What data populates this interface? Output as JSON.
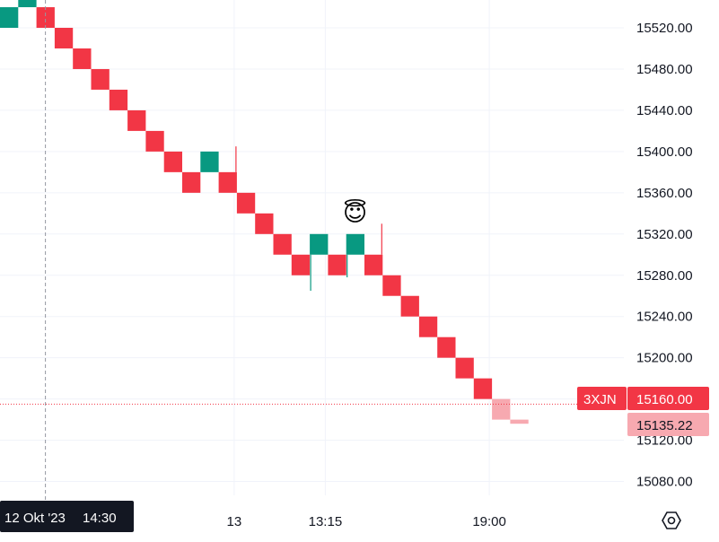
{
  "chart_data": {
    "type": "renko",
    "symbol": "3XJN",
    "brick_size": 20,
    "y_ticks": [
      "15520.00",
      "15480.00",
      "15440.00",
      "15400.00",
      "15360.00",
      "15320.00",
      "15280.00",
      "15240.00",
      "15200.00",
      "15120.00",
      "15080.00"
    ],
    "y_tick_values": [
      15520,
      15480,
      15440,
      15400,
      15360,
      15320,
      15280,
      15240,
      15200,
      15120,
      15080
    ],
    "x_ticks": [
      {
        "label": "13",
        "value": 13
      },
      {
        "label": "13:15",
        "value": 18
      },
      {
        "label": "19:00",
        "value": 27
      }
    ],
    "crosshair": {
      "date_label": "12 Okt '23",
      "time_label": "14:30",
      "index": 2
    },
    "last_price": {
      "symbol": "3XJN",
      "value": "15160.00"
    },
    "live_price": {
      "value": "15135.22"
    },
    "last_price_level": 15155,
    "emoji": "😇",
    "colors": {
      "up": "#089981",
      "down": "#f23645",
      "projected": "#f7a9b0",
      "badge": "#f23645",
      "badge_light": "#f7a9b0"
    },
    "bricks": [
      {
        "i": 0,
        "open": 15520,
        "close": 15540,
        "dir": "up"
      },
      {
        "i": 1,
        "open": 15540,
        "close": 15560,
        "dir": "up"
      },
      {
        "i": 2,
        "open": 15540,
        "close": 15520,
        "dir": "down"
      },
      {
        "i": 3,
        "open": 15520,
        "close": 15500,
        "dir": "down"
      },
      {
        "i": 4,
        "open": 15500,
        "close": 15480,
        "dir": "down"
      },
      {
        "i": 5,
        "open": 15480,
        "close": 15460,
        "dir": "down"
      },
      {
        "i": 6,
        "open": 15460,
        "close": 15440,
        "dir": "down"
      },
      {
        "i": 7,
        "open": 15440,
        "close": 15420,
        "dir": "down"
      },
      {
        "i": 8,
        "open": 15420,
        "close": 15400,
        "dir": "down"
      },
      {
        "i": 9,
        "open": 15400,
        "close": 15380,
        "dir": "down"
      },
      {
        "i": 10,
        "open": 15380,
        "close": 15360,
        "dir": "down"
      },
      {
        "i": 11,
        "open": 15380,
        "close": 15400,
        "dir": "up"
      },
      {
        "i": 12,
        "open": 15380,
        "close": 15360,
        "dir": "down",
        "wick_high": 15405
      },
      {
        "i": 13,
        "open": 15360,
        "close": 15340,
        "dir": "down"
      },
      {
        "i": 14,
        "open": 15340,
        "close": 15320,
        "dir": "down"
      },
      {
        "i": 15,
        "open": 15320,
        "close": 15300,
        "dir": "down"
      },
      {
        "i": 16,
        "open": 15300,
        "close": 15280,
        "dir": "down"
      },
      {
        "i": 17,
        "open": 15300,
        "close": 15320,
        "dir": "up",
        "wick_low": 15265
      },
      {
        "i": 18,
        "open": 15300,
        "close": 15280,
        "dir": "down"
      },
      {
        "i": 19,
        "open": 15300,
        "close": 15320,
        "dir": "up",
        "wick_low": 15278
      },
      {
        "i": 20,
        "open": 15300,
        "close": 15280,
        "dir": "down",
        "wick_high": 15330
      },
      {
        "i": 21,
        "open": 15280,
        "close": 15260,
        "dir": "down"
      },
      {
        "i": 22,
        "open": 15260,
        "close": 15240,
        "dir": "down"
      },
      {
        "i": 23,
        "open": 15240,
        "close": 15220,
        "dir": "down"
      },
      {
        "i": 24,
        "open": 15220,
        "close": 15200,
        "dir": "down"
      },
      {
        "i": 25,
        "open": 15200,
        "close": 15180,
        "dir": "down"
      },
      {
        "i": 26,
        "open": 15180,
        "close": 15160,
        "dir": "down"
      },
      {
        "i": 27,
        "open": 15160,
        "close": 15140,
        "dir": "projected"
      },
      {
        "i": 28,
        "open": 15140,
        "close": 15136,
        "dir": "projected"
      }
    ],
    "grid": true,
    "axis_position": "right"
  },
  "icons": {
    "settings": "settings-hexagon-icon"
  }
}
